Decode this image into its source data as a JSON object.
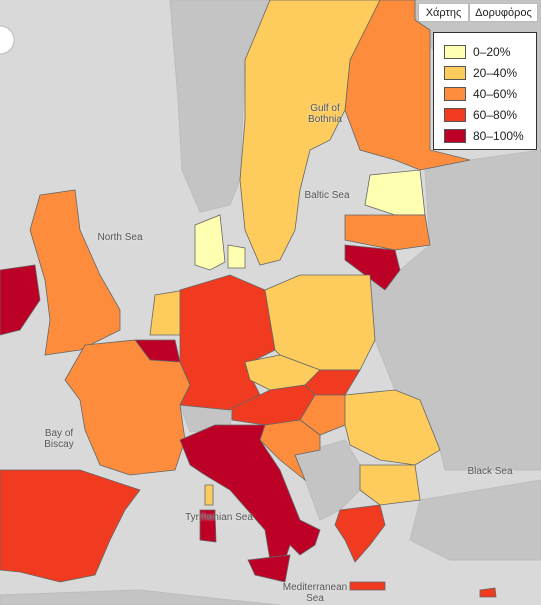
{
  "map_type_buttons": [
    "Χάρτης",
    "Δορυφόρος"
  ],
  "legend": [
    {
      "label": "0–20%",
      "color": "#ffffb2"
    },
    {
      "label": "20–40%",
      "color": "#fecc5c"
    },
    {
      "label": "40–60%",
      "color": "#fd8d3c"
    },
    {
      "label": "60–80%",
      "color": "#f03b20"
    },
    {
      "label": "80–100%",
      "color": "#bd0026"
    }
  ],
  "place_labels": [
    "Gulf of Bothnia",
    "Baltic Sea",
    "North Sea",
    "Bay of Biscay",
    "Black Sea",
    "Tyrrhenian Sea",
    "Mediterranean Sea"
  ]
}
